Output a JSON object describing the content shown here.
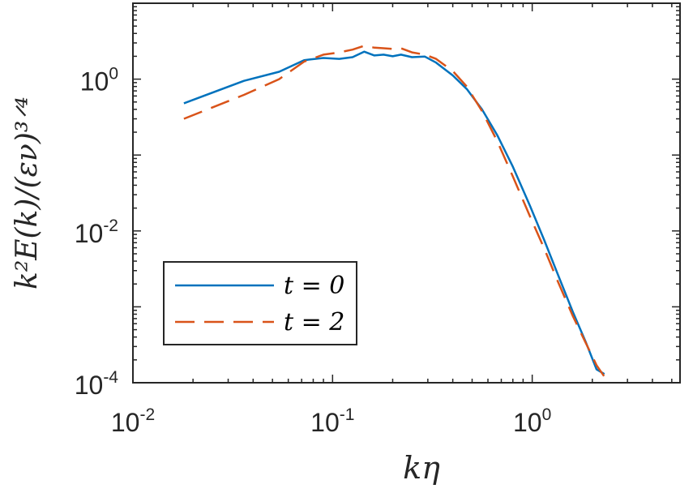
{
  "chart_data": {
    "type": "line",
    "x_scale": "log",
    "y_scale": "log",
    "xlabel": "kη",
    "ylabel": "k²E(k)/(εν)³ᐟ⁴",
    "xlim": [
      0.01,
      5.5
    ],
    "ylim": [
      0.0001,
      10
    ],
    "x_ticks": [
      {
        "value": 0.01,
        "base": "10",
        "exp": "-2"
      },
      {
        "value": 0.1,
        "base": "10",
        "exp": "-1"
      },
      {
        "value": 1,
        "base": "10",
        "exp": "0"
      }
    ],
    "y_ticks": [
      {
        "value": 0.0001,
        "base": "10",
        "exp": "-4"
      },
      {
        "value": 0.01,
        "base": "10",
        "exp": "-2"
      },
      {
        "value": 1,
        "base": "10",
        "exp": "0"
      }
    ],
    "legend_position": "bottom-left",
    "series": [
      {
        "name": "t = 0",
        "color": "#0072BD",
        "style": "solid",
        "x": [
          0.018,
          0.036,
          0.054,
          0.072,
          0.09,
          0.108,
          0.126,
          0.144,
          0.162,
          0.18,
          0.2,
          0.22,
          0.25,
          0.29,
          0.33,
          0.4,
          0.47,
          0.56,
          0.67,
          0.8,
          0.97,
          1.15,
          1.35,
          1.6,
          1.85,
          2.1,
          2.3
        ],
        "y": [
          0.48,
          0.95,
          1.25,
          1.78,
          1.9,
          1.85,
          1.95,
          2.3,
          2.05,
          2.1,
          2.0,
          2.1,
          1.95,
          1.98,
          1.65,
          1.12,
          0.74,
          0.4,
          0.18,
          0.07,
          0.022,
          0.0075,
          0.0026,
          0.00085,
          0.00035,
          0.00015,
          0.00013
        ]
      },
      {
        "name": "t = 2",
        "color": "#D95319",
        "style": "dashed",
        "x": [
          0.018,
          0.036,
          0.054,
          0.072,
          0.09,
          0.108,
          0.126,
          0.144,
          0.162,
          0.18,
          0.2,
          0.22,
          0.25,
          0.29,
          0.33,
          0.4,
          0.47,
          0.56,
          0.67,
          0.8,
          0.97,
          1.15,
          1.35,
          1.6,
          1.85,
          2.1,
          2.3
        ],
        "y": [
          0.3,
          0.62,
          1.0,
          1.7,
          2.1,
          2.25,
          2.45,
          2.75,
          2.6,
          2.55,
          2.5,
          2.55,
          2.25,
          2.1,
          1.85,
          1.28,
          0.8,
          0.38,
          0.15,
          0.052,
          0.016,
          0.0058,
          0.0021,
          0.00075,
          0.00034,
          0.00017,
          0.00012
        ]
      }
    ]
  }
}
